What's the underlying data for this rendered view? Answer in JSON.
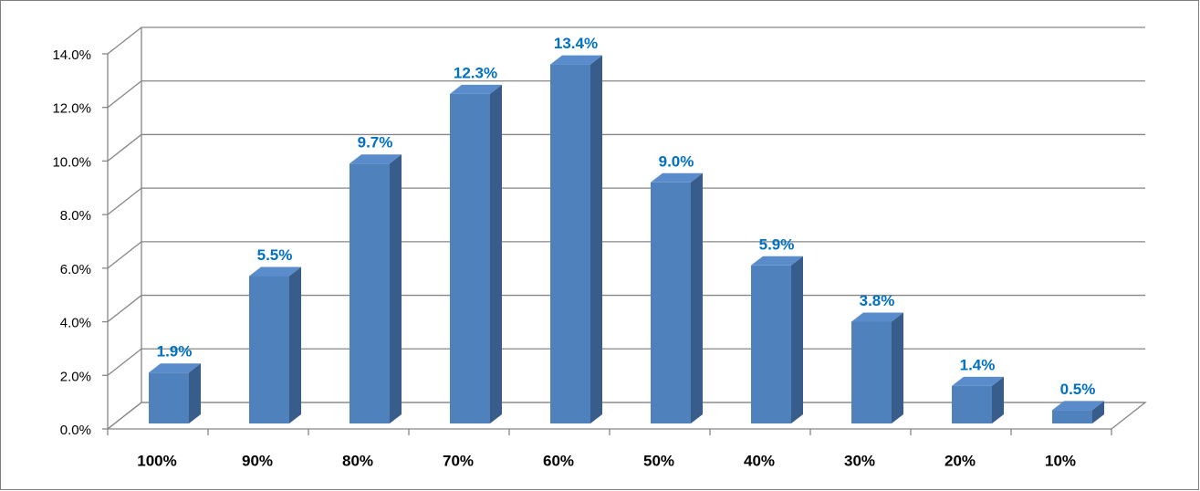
{
  "chart_data": {
    "type": "bar3d",
    "categories": [
      "100%",
      "90%",
      "80%",
      "70%",
      "60%",
      "50%",
      "40%",
      "30%",
      "20%",
      "10%"
    ],
    "values": [
      1.9,
      5.5,
      9.7,
      12.3,
      13.4,
      9.0,
      5.9,
      3.8,
      1.4,
      0.5
    ],
    "value_labels": [
      "1.9%",
      "5.5%",
      "9.7%",
      "12.3%",
      "13.4%",
      "9.0%",
      "5.9%",
      "3.8%",
      "1.4%",
      "0.5%"
    ],
    "color": "#4f81bd",
    "ylim": [
      0,
      14
    ],
    "yticks": [
      {
        "value": 0,
        "label": "0.0%"
      },
      {
        "value": 2,
        "label": "2.0%"
      },
      {
        "value": 4,
        "label": "4.0%"
      },
      {
        "value": 6,
        "label": "6.0%"
      },
      {
        "value": 8,
        "label": "8.0%"
      },
      {
        "value": 10,
        "label": "10.0%"
      },
      {
        "value": 12,
        "label": "12.0%"
      },
      {
        "value": 14,
        "label": "14.0%"
      }
    ],
    "grid": true
  }
}
